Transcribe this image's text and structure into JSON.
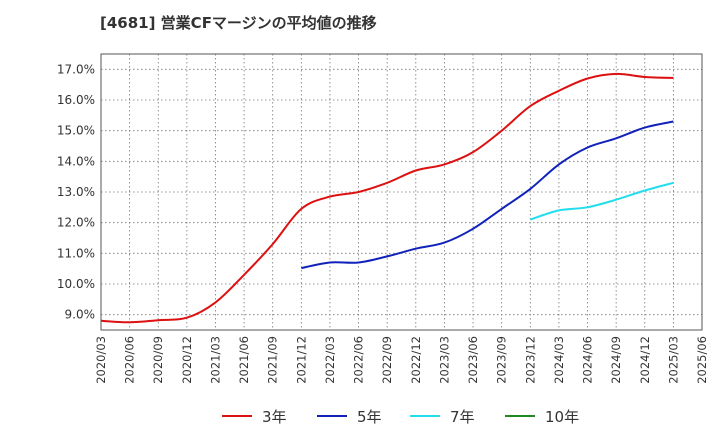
{
  "chart_data": {
    "type": "line",
    "title": "[4681]  営業CFマージンの平均値の推移",
    "xlabel": "",
    "ylabel": "",
    "x_ticks": [
      "2020/03",
      "2020/06",
      "2020/09",
      "2020/12",
      "2021/03",
      "2021/06",
      "2021/09",
      "2021/12",
      "2022/03",
      "2022/06",
      "2022/09",
      "2022/12",
      "2023/03",
      "2023/06",
      "2023/09",
      "2023/12",
      "2024/03",
      "2024/06",
      "2024/09",
      "2024/12",
      "2025/03",
      "2025/06"
    ],
    "y_ticks": [
      "9.0%",
      "10.0%",
      "11.0%",
      "12.0%",
      "13.0%",
      "14.0%",
      "15.0%",
      "16.0%",
      "17.0%"
    ],
    "ylim": [
      8.5,
      17.5
    ],
    "grid": true,
    "legend_position": "bottom",
    "series": [
      {
        "name": "3年",
        "color": "#dd1111",
        "x": [
          "2020/03",
          "2020/06",
          "2020/09",
          "2020/12",
          "2021/03",
          "2021/06",
          "2021/09",
          "2021/12",
          "2022/03",
          "2022/06",
          "2022/09",
          "2022/12",
          "2023/03",
          "2023/06",
          "2023/09",
          "2023/12",
          "2024/03",
          "2024/06",
          "2024/09",
          "2024/12",
          "2025/03"
        ],
        "values": [
          8.8,
          8.75,
          8.82,
          8.9,
          9.4,
          10.3,
          11.3,
          12.45,
          12.85,
          13.0,
          13.3,
          13.7,
          13.9,
          14.3,
          15.0,
          15.8,
          16.3,
          16.7,
          16.85,
          16.75,
          16.72
        ]
      },
      {
        "name": "5年",
        "color": "#1122bb",
        "x": [
          "2021/12",
          "2022/03",
          "2022/06",
          "2022/09",
          "2022/12",
          "2023/03",
          "2023/06",
          "2023/09",
          "2023/12",
          "2024/03",
          "2024/06",
          "2024/09",
          "2024/12",
          "2025/03"
        ],
        "values": [
          10.52,
          10.7,
          10.7,
          10.9,
          11.15,
          11.35,
          11.8,
          12.45,
          13.1,
          13.9,
          14.45,
          14.75,
          15.1,
          15.3
        ]
      },
      {
        "name": "7年",
        "color": "#22ddee",
        "x": [
          "2023/12",
          "2024/03",
          "2024/06",
          "2024/09",
          "2024/12",
          "2025/03"
        ],
        "values": [
          12.1,
          12.4,
          12.5,
          12.75,
          13.05,
          13.3
        ]
      },
      {
        "name": "10年",
        "color": "#228822",
        "x": [],
        "values": []
      }
    ]
  }
}
